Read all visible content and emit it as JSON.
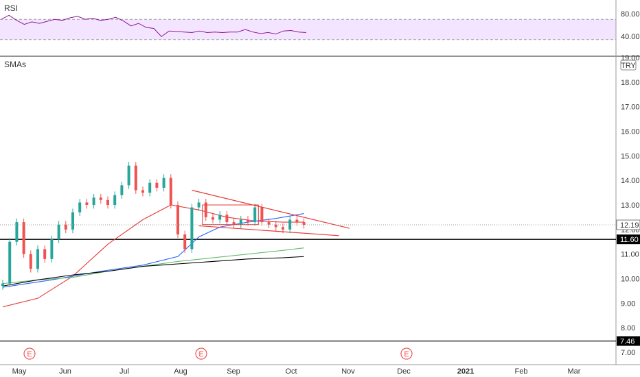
{
  "rsi_panel": {
    "label": "RSI",
    "ticks": [
      "80.00",
      "40.00"
    ],
    "tick_values": [
      80,
      40
    ],
    "band_upper": 70,
    "band_lower": 30,
    "line_color": "#8e1599",
    "band_fill": "#f3e5ff"
  },
  "main_panel": {
    "label": "SMAs",
    "currency": "TRY",
    "y_ticks": [
      "19.00",
      "18.00",
      "17.00",
      "16.00",
      "15.00",
      "14.00",
      "13.00",
      "12.00",
      "11.00",
      "10.00",
      "9.00",
      "8.00",
      "7.00"
    ],
    "last_price_label": "12.19",
    "hline_labels": [
      "11.60",
      "7.46"
    ],
    "earnings_marker": "E"
  },
  "x_axis": {
    "labels": [
      "May",
      "Jun",
      "Jul",
      "Aug",
      "Sep",
      "Oct",
      "Nov",
      "Dec",
      "2021",
      "Feb",
      "Mar"
    ]
  },
  "colors": {
    "up": "#26a69a",
    "down": "#ef5350",
    "sma_blue": "#2962ff",
    "sma_red": "#e53935",
    "sma_green": "#66bb6a",
    "black_line": "#000000",
    "trendline": "#e53935"
  },
  "chart_data": {
    "type": "candlestick",
    "x_labels": [
      "May",
      "Jun",
      "Jul",
      "Aug",
      "Sep",
      "Oct",
      "Nov",
      "Dec",
      "2021",
      "Feb",
      "Mar"
    ],
    "ylim": [
      6.7,
      19.1
    ],
    "last_price": 12.19,
    "horizontal_levels": [
      11.6,
      7.46
    ],
    "candles_close_path": [
      [
        0,
        9.8
      ],
      [
        2,
        11.5
      ],
      [
        4,
        12.3
      ],
      [
        6,
        11.0
      ],
      [
        8,
        10.4
      ],
      [
        10,
        11.2
      ],
      [
        12,
        10.8
      ],
      [
        14,
        11.6
      ],
      [
        16,
        12.2
      ],
      [
        18,
        12.0
      ],
      [
        20,
        12.7
      ],
      [
        22,
        13.1
      ],
      [
        24,
        13.0
      ],
      [
        26,
        13.3
      ],
      [
        28,
        13.2
      ],
      [
        30,
        13.0
      ],
      [
        32,
        13.4
      ],
      [
        34,
        13.8
      ],
      [
        36,
        14.6
      ],
      [
        38,
        13.6
      ],
      [
        40,
        13.5
      ],
      [
        42,
        13.9
      ],
      [
        44,
        13.7
      ],
      [
        46,
        14.1
      ],
      [
        48,
        13.0
      ],
      [
        50,
        11.8
      ],
      [
        52,
        11.2
      ],
      [
        54,
        12.9
      ],
      [
        56,
        13.1
      ],
      [
        58,
        12.5
      ],
      [
        60,
        12.4
      ],
      [
        62,
        12.6
      ],
      [
        64,
        12.3
      ],
      [
        66,
        12.2
      ],
      [
        68,
        12.4
      ],
      [
        70,
        12.3
      ],
      [
        72,
        12.9
      ],
      [
        74,
        12.3
      ],
      [
        76,
        12.2
      ],
      [
        78,
        12.1
      ],
      [
        80,
        12.0
      ],
      [
        82,
        12.4
      ],
      [
        84,
        12.3
      ],
      [
        86,
        12.19
      ]
    ],
    "rsi_values": [
      70,
      78,
      68,
      60,
      65,
      62,
      66,
      70,
      68,
      73,
      76,
      70,
      72,
      68,
      70,
      74,
      67,
      57,
      62,
      54,
      52,
      36,
      47,
      46,
      45,
      44,
      47,
      44,
      45,
      44,
      45,
      45,
      50,
      45,
      42,
      44,
      41,
      47,
      48,
      45,
      44
    ],
    "series": [
      {
        "name": "",
        "color": "#e53935",
        "values": [
          [
            0,
            8.85
          ],
          [
            10,
            9.2
          ],
          [
            20,
            10.1
          ],
          [
            30,
            11.4
          ],
          [
            40,
            12.4
          ],
          [
            48,
            13.0
          ],
          [
            56,
            12.8
          ],
          [
            64,
            12.5
          ],
          [
            72,
            12.35
          ],
          [
            80,
            12.3
          ],
          [
            86,
            12.3
          ]
        ]
      },
      {
        "name": "",
        "color": "#2962ff",
        "values": [
          [
            0,
            9.65
          ],
          [
            14,
            9.95
          ],
          [
            28,
            10.3
          ],
          [
            40,
            10.55
          ],
          [
            50,
            10.9
          ],
          [
            56,
            11.7
          ],
          [
            62,
            12.1
          ],
          [
            70,
            12.3
          ],
          [
            78,
            12.45
          ],
          [
            86,
            12.65
          ]
        ]
      },
      {
        "name": "",
        "color": "#66bb6a",
        "values": [
          [
            0,
            9.8
          ],
          [
            10,
            9.95
          ],
          [
            20,
            10.05
          ],
          [
            30,
            10.3
          ],
          [
            40,
            10.5
          ],
          [
            50,
            10.7
          ],
          [
            60,
            10.85
          ],
          [
            70,
            11.0
          ],
          [
            80,
            11.15
          ],
          [
            86,
            11.25
          ]
        ]
      },
      {
        "name": "",
        "color": "#000000",
        "values": [
          [
            0,
            9.7
          ],
          [
            10,
            9.95
          ],
          [
            20,
            10.15
          ],
          [
            30,
            10.3
          ],
          [
            40,
            10.5
          ],
          [
            50,
            10.6
          ],
          [
            60,
            10.7
          ],
          [
            70,
            10.8
          ],
          [
            80,
            10.85
          ],
          [
            86,
            10.9
          ]
        ]
      }
    ],
    "trendlines": [
      {
        "from": [
          54,
          13.6
        ],
        "to": [
          99,
          12.05
        ]
      },
      {
        "from": [
          56,
          12.15
        ],
        "to": [
          96,
          11.75
        ]
      }
    ],
    "consolidation_box": {
      "from": [
        57,
        13.0
      ],
      "to": [
        73,
        12.2
      ]
    }
  }
}
